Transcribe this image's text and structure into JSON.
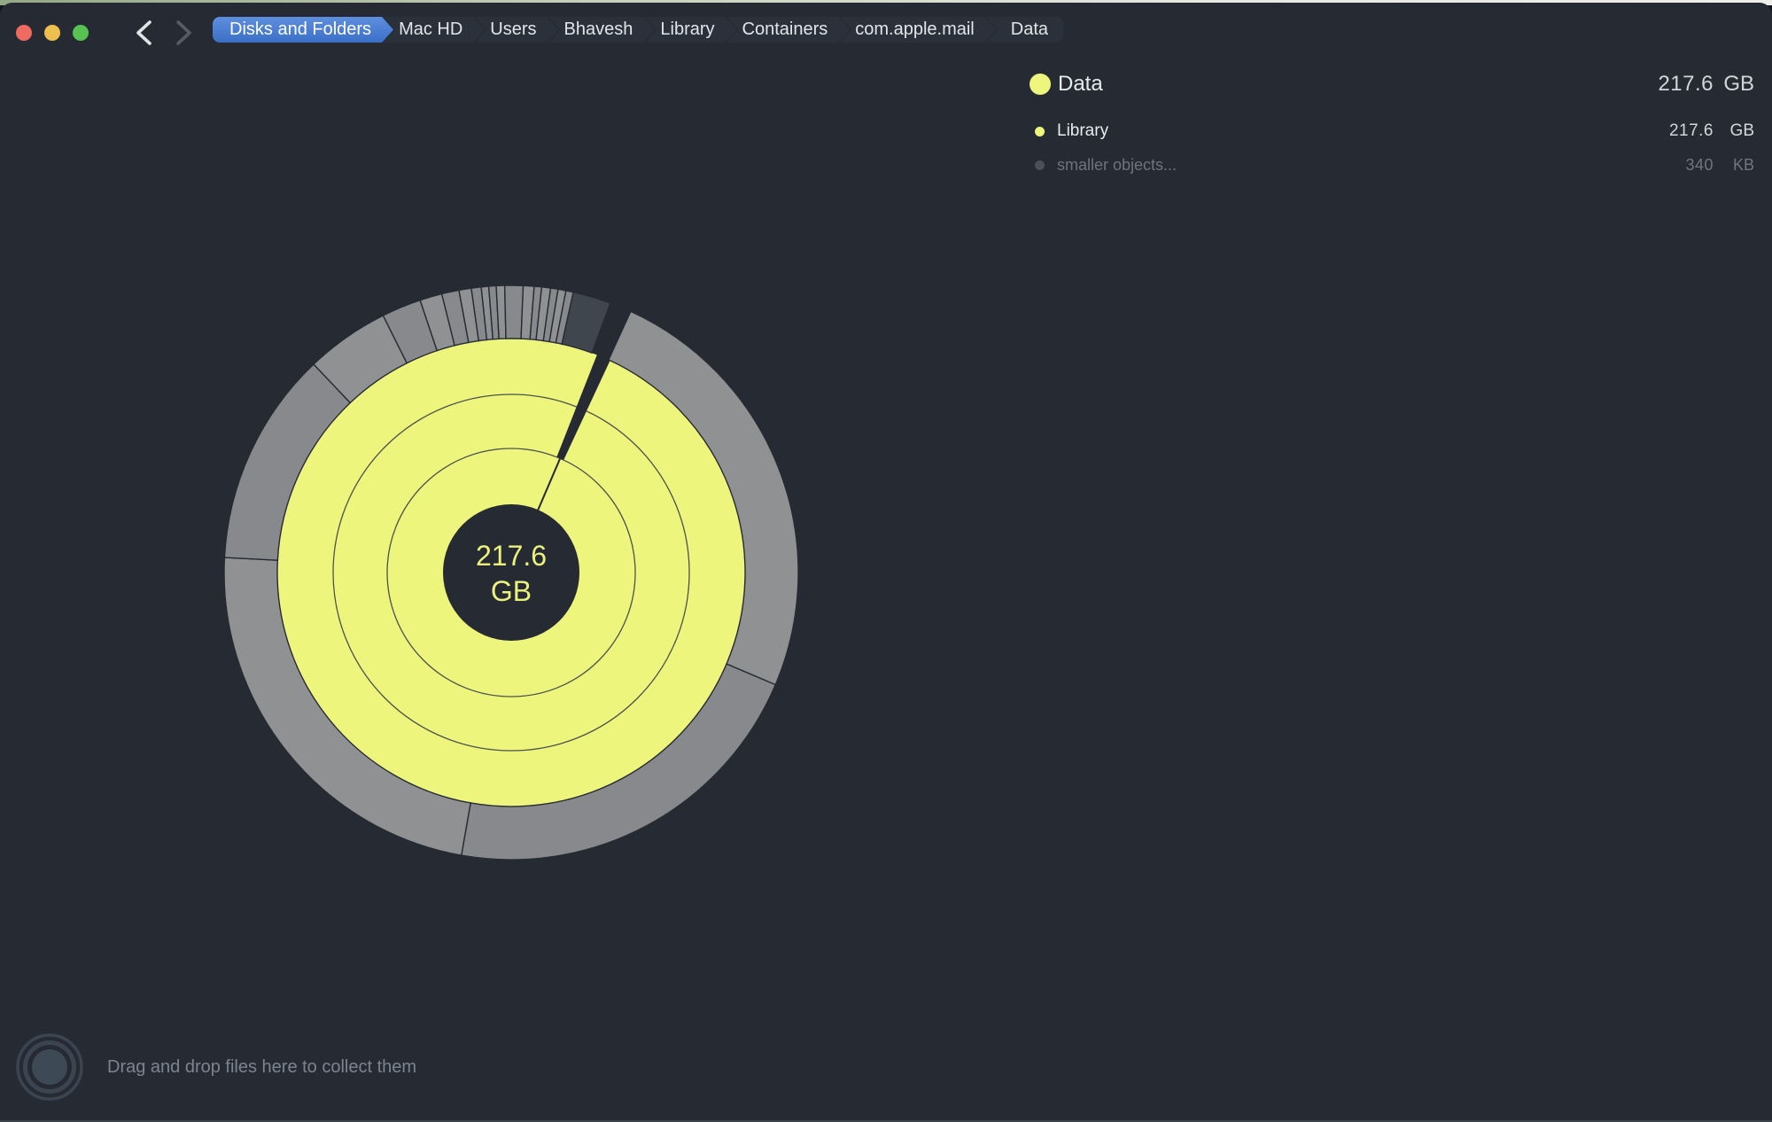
{
  "breadcrumb": [
    "Disks and Folders",
    "Mac HD",
    "Users",
    "Bhavesh",
    "Library",
    "Containers",
    "com.apple.mail",
    "Data"
  ],
  "legend": {
    "rows": [
      {
        "label": "Data",
        "number": "217.6",
        "unit": "GB",
        "level": "current"
      },
      {
        "label": "Library",
        "number": "217.6",
        "unit": "GB",
        "level": "child"
      },
      {
        "label": "smaller objects...",
        "number": "340",
        "unit": "KB",
        "level": "muted"
      }
    ]
  },
  "chart_data": {
    "type": "sunburst",
    "center_label": {
      "number": "217.6",
      "unit": "GB"
    },
    "selected_folder": "Data",
    "selected_total": "217.6 GB",
    "rings": {
      "hole_r": 77,
      "inner_arc_radii": [
        140,
        201
      ],
      "yellow_outer_r": 264,
      "gray_outer_r": 324
    },
    "yellow_levels": 3,
    "wedge": {
      "start_deg": 21.5,
      "end_deg": 25.0,
      "inner_r": 140,
      "hairline_deg": 23.2
    },
    "gray_segments": [
      {
        "start": 24.6,
        "end": 113,
        "shade": "a"
      },
      {
        "start": 113,
        "end": 190,
        "shade": "b"
      },
      {
        "start": 190,
        "end": 273,
        "shade": "a"
      },
      {
        "start": 273,
        "end": 316.5,
        "shade": "b"
      },
      {
        "start": 316.5,
        "end": 333.5,
        "shade": "a"
      },
      {
        "start": 333.5,
        "end": 341.5,
        "shade": "b"
      },
      {
        "start": 341.5,
        "end": 346,
        "shade": "a"
      },
      {
        "start": 346,
        "end": 349.5,
        "shade": "b"
      },
      {
        "start": 349.5,
        "end": 352,
        "shade": "a"
      },
      {
        "start": 352,
        "end": 354,
        "shade": "b"
      },
      {
        "start": 354,
        "end": 355.5,
        "shade": "a"
      },
      {
        "start": 355.5,
        "end": 357,
        "shade": "b"
      },
      {
        "start": 357,
        "end": 358.7,
        "shade": "a"
      },
      {
        "start": 358.7,
        "end": 2.4,
        "shade": "b"
      },
      {
        "start": 2.4,
        "end": 4.6,
        "shade": "a"
      },
      {
        "start": 4.6,
        "end": 6.1,
        "shade": "b"
      },
      {
        "start": 6.1,
        "end": 7.9,
        "shade": "a"
      },
      {
        "start": 7.9,
        "end": 9.4,
        "shade": "b"
      },
      {
        "start": 9.4,
        "end": 11,
        "shade": "a"
      },
      {
        "start": 11,
        "end": 12.5,
        "shade": "b"
      },
      {
        "start": 12.5,
        "end": 20.2,
        "shade": "dark"
      }
    ]
  },
  "dropzone": {
    "hint": "Drag and drop files here to collect them"
  },
  "colors": {
    "background": "#262b33",
    "yellow": "#eef57d",
    "center_text": "#eaf17c",
    "gray_a": "#8f9193",
    "gray_b": "#87898c",
    "gray_dark": "#40464e",
    "arc_line": "#3a4047",
    "accent_blue": "#4a7fd3",
    "traffic_red": "#f06b5f",
    "traffic_yellow": "#edbf4c",
    "traffic_green": "#57c152",
    "drop_ring": "#3b4552",
    "drop_fill": "#3e4956"
  }
}
